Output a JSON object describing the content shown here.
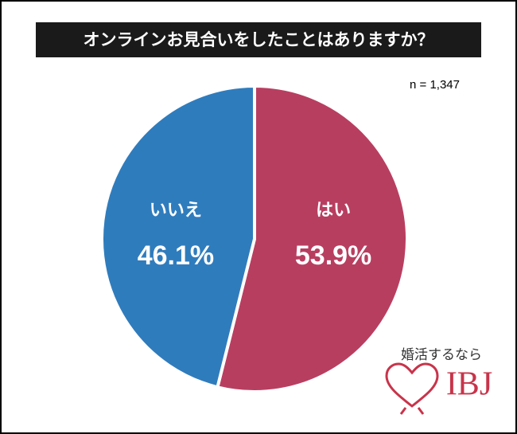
{
  "chart_data": {
    "type": "pie",
    "title": "オンラインお見合いをしたことはありますか？",
    "note": "n = 1,347",
    "categories": [
      "はい",
      "いいえ"
    ],
    "values": [
      53.9,
      46.1
    ],
    "value_labels": [
      "53.9%",
      "46.1%"
    ],
    "colors": [
      "#b83e60",
      "#2f7cbd"
    ]
  },
  "logo": {
    "tagline": "婚活するなら",
    "name": "IBJ"
  }
}
